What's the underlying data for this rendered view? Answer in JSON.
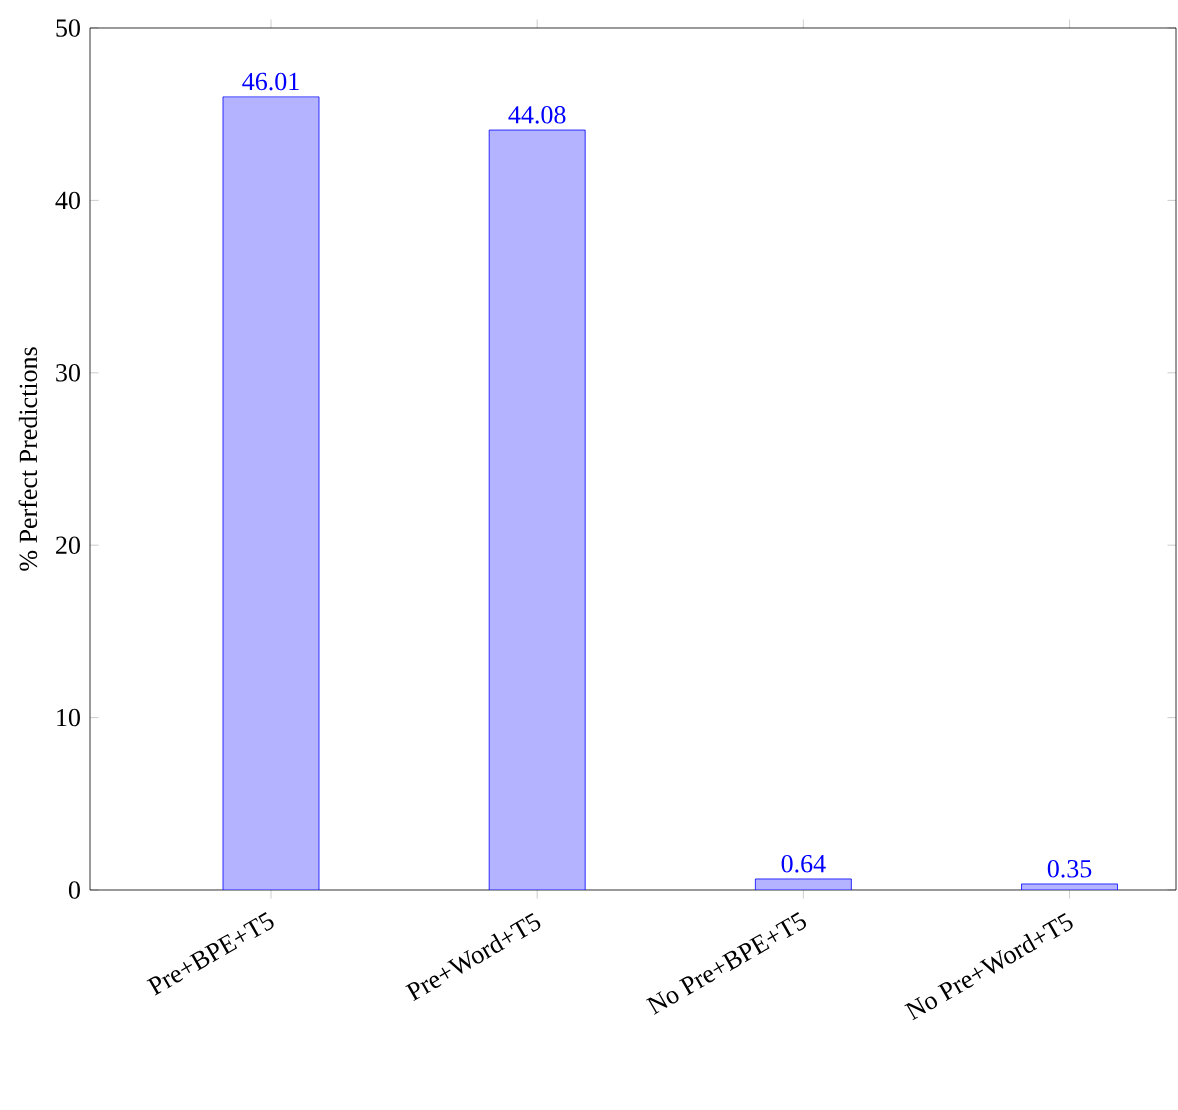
{
  "chart_data": {
    "type": "bar",
    "ylabel": "% Perfect Predictions",
    "categories": [
      "Pre+BPE+T5",
      "Pre+Word+T5",
      "No Pre+BPE+T5",
      "No Pre+Word+T5"
    ],
    "values": [
      46.01,
      44.08,
      0.64,
      0.35
    ],
    "color": "#b3b3ff",
    "data_labels": true,
    "ylim": [
      0,
      50
    ],
    "yticks": [
      0,
      10,
      20,
      30,
      40,
      50
    ]
  }
}
